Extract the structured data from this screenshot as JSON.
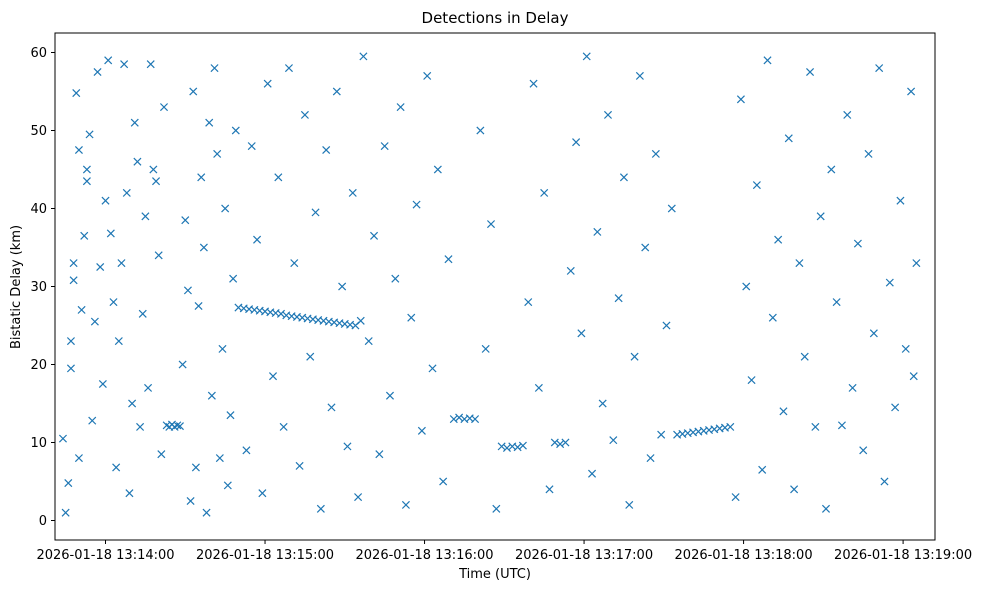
{
  "chart_data": {
    "type": "scatter",
    "title": "Detections in Delay",
    "xlabel": "Time (UTC)",
    "ylabel": "Bistatic Delay (km)",
    "x_ticks": [
      "2026-01-18 13:14:00",
      "2026-01-18 13:15:00",
      "2026-01-18 13:16:00",
      "2026-01-18 13:17:00",
      "2026-01-18 13:18:00",
      "2026-01-18 13:19:00"
    ],
    "y_ticks": [
      "0",
      "10",
      "20",
      "30",
      "40",
      "50",
      "60"
    ],
    "xlim": [
      "2026-01-18 13:13:41",
      "2026-01-18 13:19:12"
    ],
    "ylim": [
      -2.5,
      62.5
    ],
    "grid": false,
    "marker": "x",
    "color": "#1f77b4",
    "series": [
      {
        "points": [
          [
            "13:13:44",
            10.5
          ],
          [
            "13:13:45",
            1
          ],
          [
            "13:13:46",
            4.8
          ],
          [
            "13:13:47",
            19.5
          ],
          [
            "13:13:47",
            23
          ],
          [
            "13:13:48",
            30.8
          ],
          [
            "13:13:48",
            33
          ],
          [
            "13:13:49",
            54.8
          ],
          [
            "13:13:50",
            47.5
          ],
          [
            "13:13:50",
            8
          ],
          [
            "13:13:51",
            27
          ],
          [
            "13:13:52",
            36.5
          ],
          [
            "13:13:53",
            45
          ],
          [
            "13:13:53",
            43.5
          ],
          [
            "13:13:54",
            49.5
          ],
          [
            "13:13:55",
            12.8
          ],
          [
            "13:13:56",
            25.5
          ],
          [
            "13:13:57",
            57.5
          ],
          [
            "13:13:58",
            32.5
          ],
          [
            "13:13:59",
            17.5
          ],
          [
            "13:14:00",
            41
          ],
          [
            "13:14:01",
            59
          ],
          [
            "13:14:02",
            36.8
          ],
          [
            "13:14:03",
            28
          ],
          [
            "13:14:04",
            6.8
          ],
          [
            "13:14:05",
            23
          ],
          [
            "13:14:06",
            33
          ],
          [
            "13:14:07",
            58.5
          ],
          [
            "13:14:08",
            42
          ],
          [
            "13:14:09",
            3.5
          ],
          [
            "13:14:10",
            15
          ],
          [
            "13:14:11",
            51
          ],
          [
            "13:14:12",
            46
          ],
          [
            "13:14:13",
            12
          ],
          [
            "13:14:14",
            26.5
          ],
          [
            "13:14:15",
            39
          ],
          [
            "13:14:16",
            17
          ],
          [
            "13:14:17",
            58.5
          ],
          [
            "13:14:18",
            45
          ],
          [
            "13:14:19",
            43.5
          ],
          [
            "13:14:20",
            34
          ],
          [
            "13:14:21",
            8.5
          ],
          [
            "13:14:22",
            53
          ],
          [
            "13:14:23",
            12.2
          ],
          [
            "13:14:24",
            12
          ],
          [
            "13:14:25",
            12.3
          ],
          [
            "13:14:26",
            12
          ],
          [
            "13:14:27",
            12.2
          ],
          [
            "13:14:28",
            12.1
          ],
          [
            "13:14:29",
            20
          ],
          [
            "13:14:30",
            38.5
          ],
          [
            "13:14:31",
            29.5
          ],
          [
            "13:14:32",
            2.5
          ],
          [
            "13:14:33",
            55
          ],
          [
            "13:14:34",
            6.8
          ],
          [
            "13:14:35",
            27.5
          ],
          [
            "13:14:36",
            44
          ],
          [
            "13:14:37",
            35
          ],
          [
            "13:14:38",
            1
          ],
          [
            "13:14:39",
            51
          ],
          [
            "13:14:40",
            16
          ],
          [
            "13:14:41",
            58
          ],
          [
            "13:14:42",
            47
          ],
          [
            "13:14:43",
            8
          ],
          [
            "13:14:44",
            22
          ],
          [
            "13:14:45",
            40
          ],
          [
            "13:14:46",
            4.5
          ],
          [
            "13:14:47",
            13.5
          ],
          [
            "13:14:48",
            31
          ],
          [
            "13:14:49",
            50
          ],
          [
            "13:14:50",
            27.3
          ],
          [
            "13:14:52",
            27.2
          ],
          [
            "13:14:54",
            27.1
          ],
          [
            "13:14:56",
            27
          ],
          [
            "13:14:58",
            26.9
          ],
          [
            "13:15:00",
            26.8
          ],
          [
            "13:15:02",
            26.7
          ],
          [
            "13:15:04",
            26.6
          ],
          [
            "13:15:06",
            26.5
          ],
          [
            "13:15:08",
            26.3
          ],
          [
            "13:15:10",
            26.2
          ],
          [
            "13:15:12",
            26.1
          ],
          [
            "13:15:14",
            26
          ],
          [
            "13:15:16",
            25.9
          ],
          [
            "13:15:18",
            25.8
          ],
          [
            "13:15:20",
            25.7
          ],
          [
            "13:15:22",
            25.6
          ],
          [
            "13:15:24",
            25.5
          ],
          [
            "13:15:26",
            25.4
          ],
          [
            "13:15:28",
            25.3
          ],
          [
            "13:15:30",
            25.2
          ],
          [
            "13:15:32",
            25.1
          ],
          [
            "13:15:34",
            25
          ],
          [
            "13:15:36",
            25.6
          ],
          [
            "13:14:53",
            9
          ],
          [
            "13:14:55",
            48
          ],
          [
            "13:14:57",
            36
          ],
          [
            "13:14:59",
            3.5
          ],
          [
            "13:15:01",
            56
          ],
          [
            "13:15:03",
            18.5
          ],
          [
            "13:15:05",
            44
          ],
          [
            "13:15:07",
            12
          ],
          [
            "13:15:09",
            58
          ],
          [
            "13:15:11",
            33
          ],
          [
            "13:15:13",
            7
          ],
          [
            "13:15:15",
            52
          ],
          [
            "13:15:17",
            21
          ],
          [
            "13:15:19",
            39.5
          ],
          [
            "13:15:21",
            1.5
          ],
          [
            "13:15:23",
            47.5
          ],
          [
            "13:15:25",
            14.5
          ],
          [
            "13:15:27",
            55
          ],
          [
            "13:15:29",
            30
          ],
          [
            "13:15:31",
            9.5
          ],
          [
            "13:15:33",
            42
          ],
          [
            "13:15:35",
            3
          ],
          [
            "13:15:37",
            59.5
          ],
          [
            "13:15:39",
            23
          ],
          [
            "13:15:41",
            36.5
          ],
          [
            "13:15:43",
            8.5
          ],
          [
            "13:15:45",
            48
          ],
          [
            "13:15:47",
            16
          ],
          [
            "13:15:49",
            31
          ],
          [
            "13:15:51",
            53
          ],
          [
            "13:15:53",
            2
          ],
          [
            "13:15:55",
            26
          ],
          [
            "13:15:57",
            40.5
          ],
          [
            "13:15:59",
            11.5
          ],
          [
            "13:16:01",
            57
          ],
          [
            "13:16:03",
            19.5
          ],
          [
            "13:16:05",
            45
          ],
          [
            "13:16:07",
            5
          ],
          [
            "13:16:09",
            33.5
          ],
          [
            "13:16:11",
            13
          ],
          [
            "13:16:13",
            13.2
          ],
          [
            "13:16:15",
            13
          ],
          [
            "13:16:17",
            13.1
          ],
          [
            "13:16:19",
            13
          ],
          [
            "13:16:21",
            50
          ],
          [
            "13:16:23",
            22
          ],
          [
            "13:16:25",
            38
          ],
          [
            "13:16:27",
            1.5
          ],
          [
            "13:16:29",
            9.5
          ],
          [
            "13:16:31",
            9.3
          ],
          [
            "13:16:33",
            9.5
          ],
          [
            "13:16:35",
            9.4
          ],
          [
            "13:16:37",
            9.6
          ],
          [
            "13:16:39",
            28
          ],
          [
            "13:16:41",
            56
          ],
          [
            "13:16:43",
            17
          ],
          [
            "13:16:45",
            42
          ],
          [
            "13:16:47",
            4
          ],
          [
            "13:16:49",
            10
          ],
          [
            "13:16:51",
            9.8
          ],
          [
            "13:16:53",
            10
          ],
          [
            "13:16:55",
            32
          ],
          [
            "13:16:57",
            48.5
          ],
          [
            "13:16:59",
            24
          ],
          [
            "13:17:01",
            59.5
          ],
          [
            "13:17:03",
            6
          ],
          [
            "13:17:05",
            37
          ],
          [
            "13:17:07",
            15
          ],
          [
            "13:17:09",
            52
          ],
          [
            "13:17:11",
            10.3
          ],
          [
            "13:17:13",
            28.5
          ],
          [
            "13:17:15",
            44
          ],
          [
            "13:17:17",
            2
          ],
          [
            "13:17:19",
            21
          ],
          [
            "13:17:21",
            57
          ],
          [
            "13:17:23",
            35
          ],
          [
            "13:17:25",
            8
          ],
          [
            "13:17:27",
            47
          ],
          [
            "13:17:29",
            11
          ],
          [
            "13:17:31",
            25
          ],
          [
            "13:17:33",
            40
          ],
          [
            "13:17:35",
            11
          ],
          [
            "13:17:37",
            11.1
          ],
          [
            "13:17:39",
            11.2
          ],
          [
            "13:17:41",
            11.3
          ],
          [
            "13:17:43",
            11.4
          ],
          [
            "13:17:45",
            11.5
          ],
          [
            "13:17:47",
            11.6
          ],
          [
            "13:17:49",
            11.7
          ],
          [
            "13:17:51",
            11.8
          ],
          [
            "13:17:53",
            11.9
          ],
          [
            "13:17:55",
            12
          ],
          [
            "13:17:57",
            3
          ],
          [
            "13:17:59",
            54
          ],
          [
            "13:18:01",
            30
          ],
          [
            "13:18:03",
            18
          ],
          [
            "13:18:05",
            43
          ],
          [
            "13:18:07",
            6.5
          ],
          [
            "13:18:09",
            59
          ],
          [
            "13:18:11",
            26
          ],
          [
            "13:18:13",
            36
          ],
          [
            "13:18:15",
            14
          ],
          [
            "13:18:17",
            49
          ],
          [
            "13:18:19",
            4
          ],
          [
            "13:18:21",
            33
          ],
          [
            "13:18:23",
            21
          ],
          [
            "13:18:25",
            57.5
          ],
          [
            "13:18:27",
            12
          ],
          [
            "13:18:29",
            39
          ],
          [
            "13:18:31",
            1.5
          ],
          [
            "13:18:33",
            45
          ],
          [
            "13:18:35",
            28
          ],
          [
            "13:18:37",
            12.2
          ],
          [
            "13:18:39",
            52
          ],
          [
            "13:18:41",
            17
          ],
          [
            "13:18:43",
            35.5
          ],
          [
            "13:18:45",
            9
          ],
          [
            "13:18:47",
            47
          ],
          [
            "13:18:49",
            24
          ],
          [
            "13:18:51",
            58
          ],
          [
            "13:18:53",
            5
          ],
          [
            "13:18:55",
            30.5
          ],
          [
            "13:18:57",
            14.5
          ],
          [
            "13:18:59",
            41
          ],
          [
            "13:19:01",
            22
          ],
          [
            "13:19:03",
            55
          ],
          [
            "13:19:04",
            18.5
          ],
          [
            "13:19:05",
            33
          ]
        ]
      }
    ]
  }
}
